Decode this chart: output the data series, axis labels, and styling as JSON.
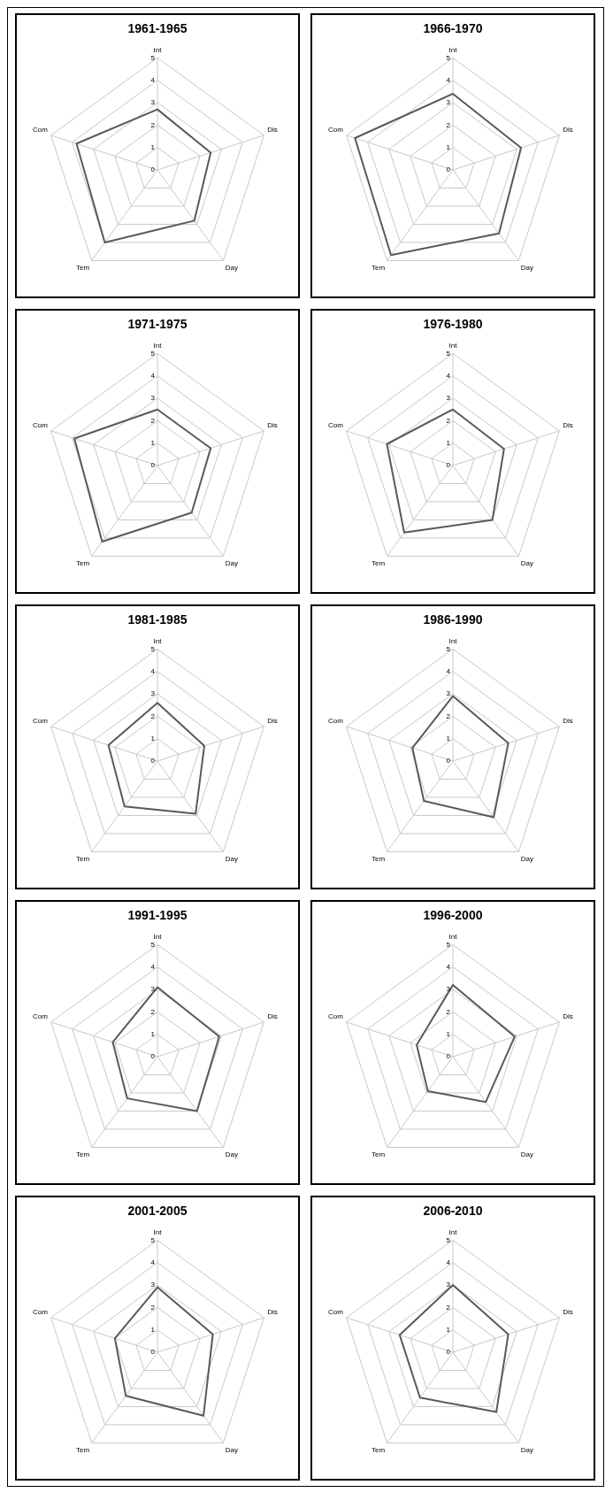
{
  "chart_data": [
    {
      "type": "radar",
      "title": "1961-1965",
      "categories": [
        "Int",
        "Dis",
        "Day",
        "Tem",
        "Com"
      ],
      "series": [
        {
          "color": "#595959",
          "values": [
            2.7,
            2.5,
            2.8,
            4.0,
            3.8
          ]
        }
      ],
      "ylim": [
        0,
        5
      ],
      "yticks": [
        0,
        1,
        2,
        3,
        4,
        5
      ],
      "grid": true,
      "marker": "none",
      "legend": false
    },
    {
      "type": "radar",
      "title": "1966-1970",
      "categories": [
        "Int",
        "Dis",
        "Day",
        "Tem",
        "Com"
      ],
      "series": [
        {
          "color": "#595959",
          "values": [
            3.4,
            3.2,
            3.5,
            4.7,
            4.6
          ]
        }
      ],
      "ylim": [
        0,
        5
      ],
      "yticks": [
        0,
        1,
        2,
        3,
        4,
        5
      ],
      "grid": true,
      "marker": "none",
      "legend": false
    },
    {
      "type": "radar",
      "title": "1971-1975",
      "categories": [
        "Int",
        "Dis",
        "Day",
        "Tem",
        "Com"
      ],
      "series": [
        {
          "color": "#595959",
          "values": [
            2.5,
            2.5,
            2.6,
            4.2,
            3.9
          ]
        }
      ],
      "ylim": [
        0,
        5
      ],
      "yticks": [
        0,
        1,
        2,
        3,
        4,
        5
      ],
      "grid": true,
      "marker": "none",
      "legend": false
    },
    {
      "type": "radar",
      "title": "1976-1980",
      "categories": [
        "Int",
        "Dis",
        "Day",
        "Tem",
        "Com"
      ],
      "series": [
        {
          "color": "#595959",
          "values": [
            2.5,
            2.4,
            3.0,
            3.7,
            3.1
          ]
        }
      ],
      "ylim": [
        0,
        5
      ],
      "yticks": [
        0,
        1,
        2,
        3,
        4,
        5
      ],
      "grid": true,
      "marker": "none",
      "legend": false
    },
    {
      "type": "radar",
      "title": "1981-1985",
      "categories": [
        "Int",
        "Dis",
        "Day",
        "Tem",
        "Com"
      ],
      "series": [
        {
          "color": "#595959",
          "values": [
            2.6,
            2.2,
            2.9,
            2.5,
            2.3
          ]
        }
      ],
      "ylim": [
        0,
        5
      ],
      "yticks": [
        0,
        1,
        2,
        3,
        4,
        5
      ],
      "grid": true,
      "marker": "none",
      "legend": false
    },
    {
      "type": "radar",
      "title": "1986-1990",
      "categories": [
        "Int",
        "Dis",
        "Day",
        "Tem",
        "Com"
      ],
      "series": [
        {
          "color": "#595959",
          "values": [
            2.9,
            2.6,
            3.1,
            2.2,
            1.9
          ]
        }
      ],
      "ylim": [
        0,
        5
      ],
      "yticks": [
        0,
        1,
        2,
        3,
        4,
        5
      ],
      "grid": true,
      "marker": "none",
      "legend": false
    },
    {
      "type": "radar",
      "title": "1991-1995",
      "categories": [
        "Int",
        "Dis",
        "Day",
        "Tem",
        "Com"
      ],
      "series": [
        {
          "color": "#595959",
          "values": [
            3.1,
            2.9,
            3.0,
            2.3,
            2.1
          ]
        }
      ],
      "ylim": [
        0,
        5
      ],
      "yticks": [
        0,
        1,
        2,
        3,
        4,
        5
      ],
      "grid": true,
      "marker": "none",
      "legend": false
    },
    {
      "type": "radar",
      "title": "1996-2000",
      "categories": [
        "Int",
        "Dis",
        "Day",
        "Tem",
        "Com"
      ],
      "series": [
        {
          "color": "#595959",
          "values": [
            3.2,
            2.9,
            2.5,
            1.9,
            1.7
          ]
        }
      ],
      "ylim": [
        0,
        5
      ],
      "yticks": [
        0,
        1,
        2,
        3,
        4,
        5
      ],
      "grid": true,
      "marker": "none",
      "legend": false
    },
    {
      "type": "radar",
      "title": "2001-2005",
      "categories": [
        "Int",
        "Dis",
        "Day",
        "Tem",
        "Com"
      ],
      "series": [
        {
          "color": "#595959",
          "values": [
            2.9,
            2.6,
            3.5,
            2.4,
            2.0
          ]
        }
      ],
      "ylim": [
        0,
        5
      ],
      "yticks": [
        0,
        1,
        2,
        3,
        4,
        5
      ],
      "grid": true,
      "marker": "none",
      "legend": false
    },
    {
      "type": "radar",
      "title": "2006-2010",
      "categories": [
        "Int",
        "Dis",
        "Day",
        "Tem",
        "Com"
      ],
      "series": [
        {
          "color": "#595959",
          "values": [
            3.0,
            2.6,
            3.3,
            2.5,
            2.5
          ]
        }
      ],
      "ylim": [
        0,
        5
      ],
      "yticks": [
        0,
        1,
        2,
        3,
        4,
        5
      ],
      "grid": true,
      "marker": "none",
      "legend": false
    }
  ]
}
